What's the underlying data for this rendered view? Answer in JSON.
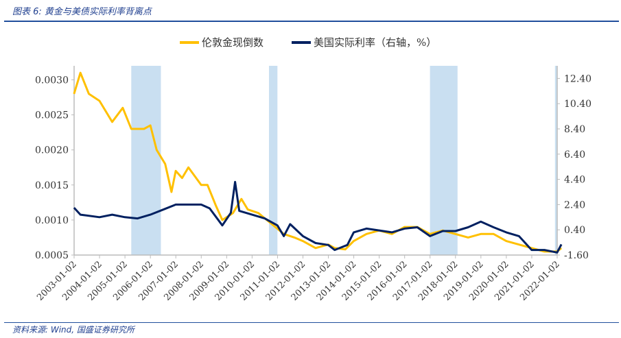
{
  "caption": "图表 6:  黄金与美债实际利率背离点",
  "source": "资料来源:  Wind,  国盛证券研究所",
  "chart_data": {
    "type": "line",
    "title": "",
    "legend_position": "top",
    "grid": false,
    "x_ticks": [
      "2003-01-02",
      "2004-01-02",
      "2005-01-02",
      "2006-01-02",
      "2007-01-02",
      "2008-01-02",
      "2009-01-02",
      "2010-01-02",
      "2011-01-02",
      "2012-01-02",
      "2013-01-02",
      "2014-01-02",
      "2015-01-02",
      "2016-01-02",
      "2017-01-02",
      "2018-01-02",
      "2019-01-02",
      "2020-01-02",
      "2021-01-02",
      "2022-01-02"
    ],
    "y_left": {
      "ylim": [
        0.0005,
        0.0032
      ],
      "ticks": [
        "0.0005",
        "0.0010",
        "0.0015",
        "0.0020",
        "0.0025",
        "0.0030"
      ]
    },
    "y_right": {
      "ylim": [
        -1.6,
        13.4
      ],
      "ticks": [
        "-1.60",
        "0.40",
        "2.40",
        "4.40",
        "6.40",
        "8.40",
        "10.40",
        "12.40"
      ]
    },
    "shaded_periods": [
      [
        "2005-04",
        "2006-06"
      ],
      [
        "2010-09",
        "2011-01"
      ],
      [
        "2017-01",
        "2018-02"
      ],
      [
        "2021-12",
        "2022-03"
      ]
    ],
    "shade_color": "#c9dff1",
    "series": [
      {
        "name": "伦敦金现倒数",
        "axis": "left",
        "color": "#ffc000",
        "x": [
          "2003-01",
          "2003-04",
          "2003-08",
          "2004-01",
          "2004-07",
          "2004-12",
          "2005-04",
          "2005-10",
          "2006-01",
          "2006-04",
          "2006-08",
          "2006-11",
          "2007-01",
          "2007-04",
          "2007-07",
          "2008-01",
          "2008-04",
          "2008-08",
          "2008-11",
          "2009-04",
          "2009-08",
          "2009-11",
          "2010-04",
          "2010-10",
          "2011-04",
          "2011-09",
          "2012-01",
          "2012-07",
          "2013-01",
          "2013-04",
          "2013-09",
          "2014-01",
          "2014-07",
          "2015-01",
          "2015-07",
          "2016-01",
          "2016-07",
          "2017-01",
          "2017-07",
          "2018-01",
          "2018-07",
          "2019-01",
          "2019-07",
          "2020-01",
          "2020-07",
          "2021-01",
          "2021-07",
          "2022-01",
          "2022-03"
        ],
        "y": [
          0.0028,
          0.0031,
          0.0028,
          0.0027,
          0.0024,
          0.0026,
          0.0023,
          0.0023,
          0.00235,
          0.002,
          0.0018,
          0.0014,
          0.0017,
          0.0016,
          0.00175,
          0.0015,
          0.0015,
          0.0012,
          0.001,
          0.0011,
          0.0013,
          0.00115,
          0.0011,
          0.00095,
          0.0008,
          0.00075,
          0.0007,
          0.0006,
          0.00065,
          0.0006,
          0.00058,
          0.0007,
          0.0008,
          0.00085,
          0.0008,
          0.0009,
          0.0009,
          0.0008,
          0.00085,
          0.0008,
          0.00075,
          0.0008,
          0.0008,
          0.0007,
          0.00065,
          0.0006,
          0.00055,
          0.00055,
          0.0006
        ]
      },
      {
        "name": "美国实际利率（右轴，%）",
        "axis": "right",
        "color": "#002060",
        "x": [
          "2003-01",
          "2003-04",
          "2004-01",
          "2004-07",
          "2005-01",
          "2005-07",
          "2006-01",
          "2006-07",
          "2007-01",
          "2007-07",
          "2008-01",
          "2008-05",
          "2008-11",
          "2009-03",
          "2009-05",
          "2009-07",
          "2010-01",
          "2010-07",
          "2011-01",
          "2011-04",
          "2011-07",
          "2012-01",
          "2012-07",
          "2013-01",
          "2013-04",
          "2013-10",
          "2014-01",
          "2014-07",
          "2015-01",
          "2015-07",
          "2016-01",
          "2016-07",
          "2017-01",
          "2017-07",
          "2018-01",
          "2018-07",
          "2019-01",
          "2019-07",
          "2020-01",
          "2020-07",
          "2021-01",
          "2021-07",
          "2022-01",
          "2022-03"
        ],
        "y": [
          2.15,
          1.6,
          1.4,
          1.6,
          1.4,
          1.3,
          1.6,
          2.0,
          2.4,
          2.4,
          2.4,
          2.1,
          0.75,
          1.75,
          4.2,
          1.9,
          1.6,
          1.3,
          0.75,
          -0.1,
          0.85,
          -0.1,
          -0.65,
          -0.8,
          -1.2,
          -0.8,
          0.2,
          0.5,
          0.35,
          0.2,
          0.5,
          0.6,
          -0.1,
          0.3,
          0.3,
          0.6,
          1.05,
          0.6,
          0.2,
          -0.1,
          -1.2,
          -1.2,
          -1.4,
          -0.75
        ]
      }
    ]
  }
}
